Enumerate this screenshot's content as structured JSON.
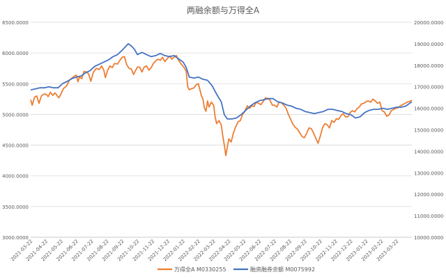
{
  "chart_data": {
    "type": "line",
    "title": "两融余额与万得全A",
    "left_axis": {
      "ylim": [
        3000,
        6500
      ],
      "ticks": [
        3000,
        3500,
        4000,
        4500,
        5000,
        5500,
        6000,
        6500
      ],
      "tick_labels": [
        "3000.0000",
        "3500.0000",
        "4000.0000",
        "4500.0000",
        "5000.0000",
        "5500.0000",
        "6000.0000",
        "6500.0000"
      ]
    },
    "right_axis": {
      "ylim": [
        10000,
        20000
      ],
      "ticks": [
        10000,
        11000,
        12000,
        13000,
        14000,
        15000,
        16000,
        17000,
        18000,
        19000,
        20000
      ],
      "tick_labels": [
        "10000.0000",
        "11000.0000",
        "12000.0000",
        "13000.0000",
        "14000.0000",
        "15000.0000",
        "16000.0000",
        "17000.0000",
        "18000.0000",
        "19000.0000",
        "20000.0000"
      ]
    },
    "x_tick_labels": [
      "2021-03-22",
      "2021-04-22",
      "2021-05-22",
      "2021-06-22",
      "2021-07-22",
      "2021-08-22",
      "2021-09-22",
      "2021-10-22",
      "2021-11-22",
      "2021-12-22",
      "2022-01-22",
      "2022-02-22",
      "2022-03-22",
      "2022-04-22",
      "2022-05-22",
      "2022-06-22",
      "2022-07-22",
      "2022-08-22",
      "2022-09-22",
      "2022-10-22",
      "2022-11-22",
      "2022-12-22",
      "2023-01-22",
      "2023-02-22",
      "2023-03-22"
    ],
    "x_range_months": [
      0,
      25
    ],
    "grid": true,
    "legend_position": "bottom",
    "series": [
      {
        "name": "万得全A M0330255",
        "axis": "left",
        "color": "#ED7D31",
        "points": [
          [
            0,
            5240
          ],
          [
            0.1,
            5150
          ],
          [
            0.25,
            5280
          ],
          [
            0.4,
            5300
          ],
          [
            0.55,
            5180
          ],
          [
            0.7,
            5300
          ],
          [
            0.85,
            5330
          ],
          [
            1.0,
            5330
          ],
          [
            1.15,
            5290
          ],
          [
            1.3,
            5360
          ],
          [
            1.45,
            5310
          ],
          [
            1.6,
            5350
          ],
          [
            1.75,
            5300
          ],
          [
            1.85,
            5270
          ],
          [
            2.0,
            5340
          ],
          [
            2.15,
            5420
          ],
          [
            2.35,
            5460
          ],
          [
            2.55,
            5560
          ],
          [
            2.7,
            5590
          ],
          [
            2.85,
            5620
          ],
          [
            3.0,
            5640
          ],
          [
            3.1,
            5530
          ],
          [
            3.2,
            5610
          ],
          [
            3.35,
            5580
          ],
          [
            3.5,
            5700
          ],
          [
            3.65,
            5690
          ],
          [
            3.8,
            5660
          ],
          [
            3.95,
            5540
          ],
          [
            4.1,
            5680
          ],
          [
            4.3,
            5750
          ],
          [
            4.5,
            5730
          ],
          [
            4.65,
            5790
          ],
          [
            4.8,
            5720
          ],
          [
            4.9,
            5600
          ],
          [
            5.05,
            5720
          ],
          [
            5.2,
            5790
          ],
          [
            5.35,
            5760
          ],
          [
            5.5,
            5830
          ],
          [
            5.7,
            5820
          ],
          [
            5.85,
            5880
          ],
          [
            6.0,
            5930
          ],
          [
            6.15,
            5940
          ],
          [
            6.3,
            5810
          ],
          [
            6.45,
            5750
          ],
          [
            6.6,
            5740
          ],
          [
            6.75,
            5650
          ],
          [
            6.85,
            5700
          ],
          [
            7.0,
            5770
          ],
          [
            7.15,
            5770
          ],
          [
            7.3,
            5690
          ],
          [
            7.45,
            5770
          ],
          [
            7.6,
            5790
          ],
          [
            7.75,
            5720
          ],
          [
            7.9,
            5760
          ],
          [
            8.05,
            5830
          ],
          [
            8.2,
            5870
          ],
          [
            8.35,
            5900
          ],
          [
            8.5,
            5880
          ],
          [
            8.65,
            5930
          ],
          [
            8.8,
            5860
          ],
          [
            9.0,
            5920
          ],
          [
            9.15,
            5950
          ],
          [
            9.25,
            5900
          ],
          [
            9.4,
            5930
          ],
          [
            9.55,
            5960
          ],
          [
            9.7,
            5880
          ],
          [
            9.85,
            5830
          ],
          [
            10.0,
            5780
          ],
          [
            10.1,
            5750
          ],
          [
            10.2,
            5700
          ],
          [
            10.3,
            5450
          ],
          [
            10.4,
            5400
          ],
          [
            10.55,
            5420
          ],
          [
            10.7,
            5430
          ],
          [
            10.85,
            5480
          ],
          [
            11.0,
            5500
          ],
          [
            11.1,
            5400
          ],
          [
            11.2,
            5300
          ],
          [
            11.3,
            5250
          ],
          [
            11.4,
            5100
          ],
          [
            11.5,
            5050
          ],
          [
            11.6,
            5220
          ],
          [
            11.7,
            5120
          ],
          [
            11.85,
            5200
          ],
          [
            12.0,
            5150
          ],
          [
            12.1,
            4960
          ],
          [
            12.2,
            4850
          ],
          [
            12.35,
            4900
          ],
          [
            12.5,
            4830
          ],
          [
            12.6,
            4650
          ],
          [
            12.7,
            4500
          ],
          [
            12.8,
            4330
          ],
          [
            12.9,
            4480
          ],
          [
            13.0,
            4600
          ],
          [
            13.15,
            4550
          ],
          [
            13.3,
            4700
          ],
          [
            13.45,
            4800
          ],
          [
            13.6,
            4880
          ],
          [
            13.75,
            4900
          ],
          [
            13.9,
            5000
          ],
          [
            14.05,
            5050
          ],
          [
            14.2,
            5140
          ],
          [
            14.35,
            5100
          ],
          [
            14.5,
            5140
          ],
          [
            14.65,
            5130
          ],
          [
            14.8,
            5200
          ],
          [
            14.95,
            5180
          ],
          [
            15.1,
            5160
          ],
          [
            15.25,
            5210
          ],
          [
            15.4,
            5270
          ],
          [
            15.55,
            5260
          ],
          [
            15.7,
            5230
          ],
          [
            15.85,
            5150
          ],
          [
            16.0,
            5150
          ],
          [
            16.15,
            5120
          ],
          [
            16.3,
            5200
          ],
          [
            16.45,
            5190
          ],
          [
            16.6,
            5150
          ],
          [
            16.75,
            5100
          ],
          [
            16.9,
            5000
          ],
          [
            17.05,
            4920
          ],
          [
            17.2,
            4840
          ],
          [
            17.35,
            4790
          ],
          [
            17.5,
            4760
          ],
          [
            17.65,
            4700
          ],
          [
            17.8,
            4640
          ],
          [
            17.95,
            4620
          ],
          [
            18.1,
            4690
          ],
          [
            18.25,
            4780
          ],
          [
            18.4,
            4770
          ],
          [
            18.55,
            4700
          ],
          [
            18.7,
            4610
          ],
          [
            18.85,
            4530
          ],
          [
            19.0,
            4650
          ],
          [
            19.15,
            4790
          ],
          [
            19.3,
            4850
          ],
          [
            19.45,
            4830
          ],
          [
            19.6,
            4780
          ],
          [
            19.75,
            4900
          ],
          [
            19.9,
            4870
          ],
          [
            20.05,
            4930
          ],
          [
            20.2,
            4920
          ],
          [
            20.35,
            4980
          ],
          [
            20.5,
            5010
          ],
          [
            20.65,
            4960
          ],
          [
            20.8,
            4960
          ],
          [
            20.95,
            5030
          ],
          [
            21.1,
            5060
          ],
          [
            21.25,
            5040
          ],
          [
            21.4,
            5090
          ],
          [
            21.55,
            5120
          ],
          [
            21.7,
            5170
          ],
          [
            21.85,
            5180
          ],
          [
            22.0,
            5210
          ],
          [
            22.15,
            5220
          ],
          [
            22.3,
            5200
          ],
          [
            22.45,
            5250
          ],
          [
            22.6,
            5220
          ],
          [
            22.75,
            5180
          ],
          [
            22.9,
            5200
          ],
          [
            23.05,
            5060
          ],
          [
            23.2,
            5040
          ],
          [
            23.35,
            4970
          ],
          [
            23.5,
            4990
          ],
          [
            23.65,
            5060
          ],
          [
            23.8,
            5080
          ],
          [
            23.95,
            5100
          ],
          [
            24.1,
            5110
          ],
          [
            24.25,
            5140
          ],
          [
            24.4,
            5160
          ],
          [
            24.55,
            5180
          ],
          [
            24.7,
            5200
          ],
          [
            24.85,
            5210
          ],
          [
            25.0,
            5230
          ]
        ]
      },
      {
        "name": "融资融券余额 M0075992",
        "axis": "right",
        "color": "#4472C4",
        "points": [
          [
            0,
            16850
          ],
          [
            0.3,
            16900
          ],
          [
            0.6,
            16950
          ],
          [
            0.9,
            16950
          ],
          [
            1.2,
            17000
          ],
          [
            1.5,
            16950
          ],
          [
            1.8,
            16950
          ],
          [
            2.1,
            17150
          ],
          [
            2.4,
            17250
          ],
          [
            2.7,
            17380
          ],
          [
            3.0,
            17450
          ],
          [
            3.3,
            17500
          ],
          [
            3.6,
            17650
          ],
          [
            3.9,
            17750
          ],
          [
            4.2,
            17950
          ],
          [
            4.5,
            18050
          ],
          [
            4.8,
            18150
          ],
          [
            5.1,
            18250
          ],
          [
            5.4,
            18400
          ],
          [
            5.7,
            18500
          ],
          [
            6.0,
            18700
          ],
          [
            6.2,
            18850
          ],
          [
            6.4,
            19000
          ],
          [
            6.6,
            18900
          ],
          [
            6.8,
            18750
          ],
          [
            7.0,
            18500
          ],
          [
            7.3,
            18600
          ],
          [
            7.6,
            18500
          ],
          [
            7.9,
            18400
          ],
          [
            8.2,
            18450
          ],
          [
            8.5,
            18550
          ],
          [
            8.8,
            18450
          ],
          [
            9.1,
            18400
          ],
          [
            9.4,
            18450
          ],
          [
            9.7,
            18300
          ],
          [
            10.0,
            18150
          ],
          [
            10.2,
            17900
          ],
          [
            10.4,
            17450
          ],
          [
            10.7,
            17400
          ],
          [
            11.0,
            17450
          ],
          [
            11.3,
            17350
          ],
          [
            11.6,
            17300
          ],
          [
            11.9,
            17050
          ],
          [
            12.2,
            16650
          ],
          [
            12.5,
            16300
          ],
          [
            12.7,
            15700
          ],
          [
            12.9,
            15500
          ],
          [
            13.2,
            15500
          ],
          [
            13.5,
            15550
          ],
          [
            13.8,
            15700
          ],
          [
            14.1,
            15900
          ],
          [
            14.4,
            16100
          ],
          [
            14.7,
            16250
          ],
          [
            15.0,
            16350
          ],
          [
            15.3,
            16400
          ],
          [
            15.6,
            16450
          ],
          [
            15.9,
            16450
          ],
          [
            16.2,
            16300
          ],
          [
            16.5,
            16250
          ],
          [
            16.8,
            16150
          ],
          [
            17.1,
            16100
          ],
          [
            17.4,
            16000
          ],
          [
            17.7,
            15950
          ],
          [
            18.0,
            15850
          ],
          [
            18.3,
            15800
          ],
          [
            18.6,
            15750
          ],
          [
            18.9,
            15800
          ],
          [
            19.2,
            15850
          ],
          [
            19.5,
            15950
          ],
          [
            19.8,
            15950
          ],
          [
            20.1,
            15900
          ],
          [
            20.4,
            15850
          ],
          [
            20.7,
            15750
          ],
          [
            21.0,
            15700
          ],
          [
            21.3,
            15550
          ],
          [
            21.6,
            15600
          ],
          [
            21.9,
            15800
          ],
          [
            22.2,
            15900
          ],
          [
            22.5,
            15950
          ],
          [
            22.8,
            15950
          ],
          [
            23.1,
            16000
          ],
          [
            23.4,
            15950
          ],
          [
            23.7,
            16000
          ],
          [
            24.0,
            16050
          ],
          [
            24.3,
            16050
          ],
          [
            24.6,
            16100
          ],
          [
            25.0,
            16300
          ]
        ]
      }
    ]
  }
}
